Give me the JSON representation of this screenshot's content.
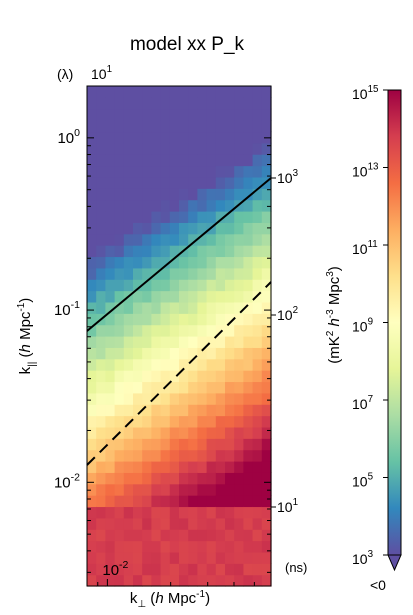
{
  "chart_data": {
    "type": "heatmap",
    "title": "model xx P_k",
    "xlabel": "k_⊥ (h Mpc^-1)",
    "ylabel": "k_|| (h Mpc^-1)",
    "x_scale": "log",
    "y_scale": "log",
    "xlim": [
      0.008,
      0.06
    ],
    "ylim": [
      0.0025,
      2.0
    ],
    "x_ticks": [
      {
        "value": 0.01,
        "label": "10",
        "exp": "-2"
      }
    ],
    "y_ticks": [
      {
        "value": 1.0,
        "label": "10",
        "exp": "0"
      },
      {
        "value": 0.1,
        "label": "10",
        "exp": "-1"
      },
      {
        "value": 0.01,
        "label": "10",
        "exp": "-2"
      }
    ],
    "top_axis": {
      "label": "(λ)",
      "ticks": [
        {
          "value": 10,
          "label": "10",
          "exp": "1"
        }
      ]
    },
    "right_axis": {
      "label": "(ns)",
      "ticks": [
        {
          "value": 1000,
          "label": "10",
          "exp": "3"
        },
        {
          "value": 100,
          "label": "10",
          "exp": "2"
        },
        {
          "value": 10,
          "label": "10",
          "exp": "1"
        }
      ]
    },
    "colorbar": {
      "label": "(mK^2 h^-3 Mpc^3)",
      "scale": "log",
      "range": [
        1000.0,
        1000000000000000.0
      ],
      "ticks": [
        {
          "value": 1000000000000000.0,
          "label": "10",
          "exp": "15"
        },
        {
          "value": 10000000000000.0,
          "label": "10",
          "exp": "13"
        },
        {
          "value": 100000000000.0,
          "label": "10",
          "exp": "11"
        },
        {
          "value": 1000000000.0,
          "label": "10",
          "exp": "9"
        },
        {
          "value": 10000000.0,
          "label": "10",
          "exp": "7"
        },
        {
          "value": 100000.0,
          "label": "10",
          "exp": "5"
        },
        {
          "value": 1000.0,
          "label": "10",
          "exp": "3"
        }
      ],
      "below_label": "<0",
      "below_color": "#5e4fa2",
      "colormap": [
        "#5e4fa2",
        "#3288bd",
        "#66c2a5",
        "#abdda4",
        "#e6f598",
        "#ffffbf",
        "#fee08b",
        "#fdae61",
        "#f46d43",
        "#d53e4f",
        "#9e0142"
      ]
    },
    "lines": [
      {
        "style": "solid",
        "color": "#000000"
      },
      {
        "style": "dashed",
        "color": "#000000"
      }
    ]
  }
}
